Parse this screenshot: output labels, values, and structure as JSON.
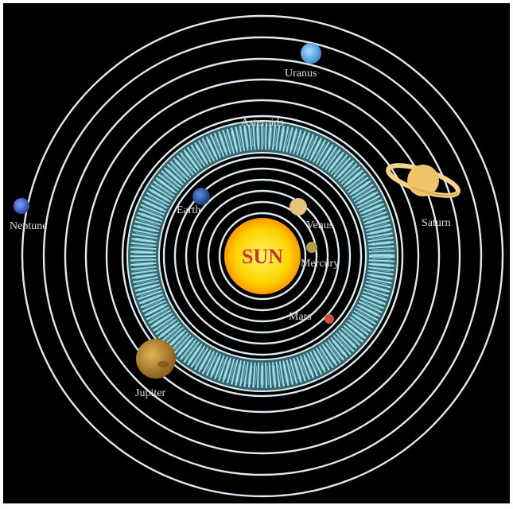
{
  "diagram": {
    "sun_label": "SUN",
    "asteroid_label": "Asteroids",
    "planets": [
      {
        "name": "Mercury",
        "color": "#b49b4b"
      },
      {
        "name": "Venus",
        "color": "#e9c37a"
      },
      {
        "name": "Earth",
        "color": "#2f5aa6"
      },
      {
        "name": "Mars",
        "color": "#c9503f"
      },
      {
        "name": "Jupiter",
        "color": "#c79a3a"
      },
      {
        "name": "Saturn",
        "color": "#f0c46a"
      },
      {
        "name": "Uranus",
        "color": "#6fb4e6"
      },
      {
        "name": "Neptune",
        "color": "#4c6fd0"
      }
    ]
  },
  "colors": {
    "background": "#000000",
    "orbit": "#dfeaf0",
    "asteroid_belt": "#7fd0d8",
    "sun_fill": "#ffd400",
    "sun_glow": "#ff9a00"
  }
}
